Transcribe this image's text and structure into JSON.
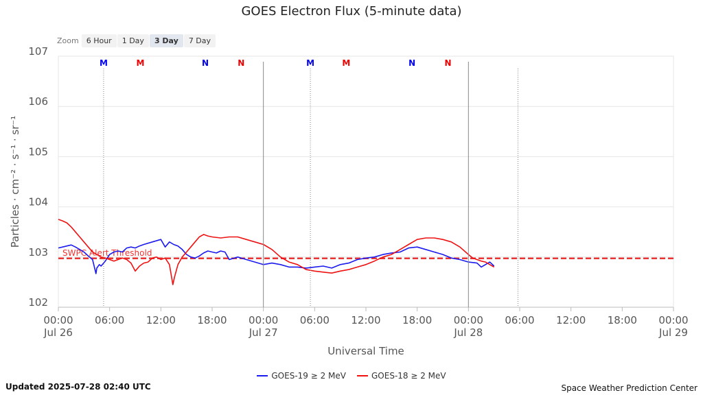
{
  "chart_data": {
    "type": "line",
    "title": "GOES Electron Flux (5-minute data)",
    "xlabel": "Universal Time",
    "ylabel": "Particles · cm⁻² · s⁻¹ · sr⁻¹",
    "x_unit": "hours since 00:00 Jul 26 UTC",
    "xlim": [
      0,
      72
    ],
    "ylim": [
      102,
      107
    ],
    "y_scale": "log",
    "y_ticks": [
      {
        "value": 102,
        "label": "102"
      },
      {
        "value": 103,
        "label": "103"
      },
      {
        "value": 104,
        "label": "104"
      },
      {
        "value": 105,
        "label": "105"
      },
      {
        "value": 106,
        "label": "106"
      },
      {
        "value": 107,
        "label": "107"
      }
    ],
    "x_ticks": [
      {
        "value": 0,
        "label": "00:00",
        "sub": "Jul 26"
      },
      {
        "value": 6,
        "label": "06:00",
        "sub": ""
      },
      {
        "value": 12,
        "label": "12:00",
        "sub": ""
      },
      {
        "value": 18,
        "label": "18:00",
        "sub": ""
      },
      {
        "value": 24,
        "label": "00:00",
        "sub": "Jul 27"
      },
      {
        "value": 30,
        "label": "06:00",
        "sub": ""
      },
      {
        "value": 36,
        "label": "12:00",
        "sub": ""
      },
      {
        "value": 42,
        "label": "18:00",
        "sub": ""
      },
      {
        "value": 48,
        "label": "00:00",
        "sub": "Jul 28"
      },
      {
        "value": 54,
        "label": "06:00",
        "sub": ""
      },
      {
        "value": 60,
        "label": "12:00",
        "sub": ""
      },
      {
        "value": 66,
        "label": "18:00",
        "sub": ""
      },
      {
        "value": 72,
        "label": "00:00",
        "sub": "Jul 29"
      }
    ],
    "day_lines": [
      24,
      48
    ],
    "noon_midnight_lines": [
      5.3,
      29.5,
      53.8
    ],
    "markers": [
      {
        "x": 5.3,
        "label": "M",
        "color": "#0000ee"
      },
      {
        "x": 9.6,
        "label": "M",
        "color": "#ee0000"
      },
      {
        "x": 17.2,
        "label": "N",
        "color": "#0000ee"
      },
      {
        "x": 21.4,
        "label": "N",
        "color": "#ee0000"
      },
      {
        "x": 29.5,
        "label": "M",
        "color": "#0000ee"
      },
      {
        "x": 33.7,
        "label": "M",
        "color": "#ee0000"
      },
      {
        "x": 41.4,
        "label": "N",
        "color": "#0000ee"
      },
      {
        "x": 45.6,
        "label": "N",
        "color": "#ee0000"
      }
    ],
    "threshold": {
      "value": 103,
      "label": "SWPC Alert Threshold",
      "color": "#ee3333"
    },
    "series": [
      {
        "name": "GOES-19 ≥ 2 MeV",
        "color": "#1a1aee",
        "x": [
          0,
          0.5,
          1,
          1.5,
          2,
          2.5,
          3,
          3.5,
          4,
          4.4,
          4.5,
          4.8,
          5,
          5.5,
          6,
          6.5,
          7,
          7.5,
          8,
          8.5,
          9,
          9.5,
          10,
          11,
          12,
          12.5,
          13,
          13.5,
          14,
          14.5,
          15,
          15.5,
          16,
          16.5,
          17,
          17.5,
          18,
          18.5,
          19,
          19.5,
          20,
          21,
          22,
          23,
          24,
          25,
          26,
          27,
          28,
          29,
          30,
          31,
          32,
          33,
          34,
          35,
          36,
          37,
          38,
          39,
          40,
          41,
          42,
          43,
          44,
          45,
          46,
          47,
          48,
          49,
          49.5,
          50,
          50.5,
          51
        ],
        "y": [
          103.18,
          103.2,
          103.22,
          103.24,
          103.2,
          103.15,
          103.1,
          103.02,
          102.95,
          102.67,
          102.78,
          102.85,
          102.82,
          102.92,
          103.05,
          103.1,
          103.12,
          103.1,
          103.18,
          103.2,
          103.18,
          103.22,
          103.25,
          103.3,
          103.35,
          103.2,
          103.3,
          103.25,
          103.22,
          103.15,
          103.05,
          103.0,
          102.98,
          103.02,
          103.08,
          103.12,
          103.1,
          103.08,
          103.12,
          103.1,
          102.95,
          103.0,
          102.95,
          102.9,
          102.85,
          102.88,
          102.85,
          102.8,
          102.8,
          102.78,
          102.8,
          102.82,
          102.78,
          102.85,
          102.88,
          102.95,
          102.98,
          103.0,
          103.05,
          103.08,
          103.1,
          103.18,
          103.2,
          103.15,
          103.1,
          103.05,
          102.98,
          102.95,
          102.9,
          102.88,
          102.8,
          102.85,
          102.9,
          102.82
        ]
      },
      {
        "name": "GOES-18 ≥ 2 MeV",
        "color": "#ee1111",
        "x": [
          0,
          0.5,
          1,
          1.5,
          2,
          2.5,
          3,
          3.5,
          4,
          4.5,
          5,
          5.5,
          6,
          6.5,
          7,
          7.5,
          8,
          8.5,
          9,
          9.5,
          10,
          10.5,
          11,
          11.5,
          12,
          12.5,
          13,
          13.4,
          13.6,
          14,
          14.5,
          15,
          15.5,
          16,
          16.5,
          17,
          17.5,
          18,
          19,
          20,
          21,
          22,
          23,
          24,
          25,
          26,
          27,
          28,
          29,
          30,
          31,
          32,
          33,
          34,
          35,
          36,
          37,
          38,
          39,
          40,
          41,
          42,
          43,
          44,
          45,
          46,
          47,
          48,
          48.5,
          49,
          49.5,
          50,
          50.5,
          51
        ],
        "y": [
          103.75,
          103.72,
          103.68,
          103.6,
          103.5,
          103.4,
          103.3,
          103.2,
          103.1,
          103.05,
          103.0,
          102.98,
          102.95,
          102.92,
          102.95,
          102.98,
          102.95,
          102.88,
          102.72,
          102.82,
          102.88,
          102.9,
          102.98,
          103.0,
          102.95,
          102.98,
          102.85,
          102.45,
          102.6,
          102.85,
          103.0,
          103.1,
          103.2,
          103.3,
          103.4,
          103.45,
          103.42,
          103.4,
          103.38,
          103.4,
          103.4,
          103.35,
          103.3,
          103.25,
          103.15,
          103.0,
          102.9,
          102.85,
          102.75,
          102.72,
          102.7,
          102.68,
          102.72,
          102.75,
          102.8,
          102.85,
          102.92,
          103.0,
          103.05,
          103.15,
          103.25,
          103.35,
          103.38,
          103.38,
          103.35,
          103.3,
          103.2,
          103.05,
          102.98,
          102.95,
          102.92,
          102.9,
          102.85,
          102.8
        ]
      }
    ]
  },
  "zoom": {
    "label": "Zoom",
    "buttons": [
      "6 Hour",
      "1 Day",
      "3 Day",
      "7 Day"
    ],
    "active": "3 Day"
  },
  "footer": {
    "updated": "Updated 2025-07-28 02:40 UTC",
    "credit": "Space Weather Prediction Center"
  }
}
